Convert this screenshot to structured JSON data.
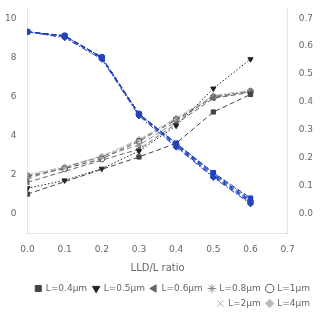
{
  "chart_data": {
    "type": "line",
    "xlabel": "LLD/L ratio",
    "xlim": [
      0.0,
      0.7
    ],
    "xticks": [
      {
        "value": 0.0,
        "label": "0.0"
      },
      0.1,
      0.2,
      0.3,
      0.4,
      0.5,
      0.6,
      0.7
    ],
    "ylim": [
      -1.0,
      10.5
    ],
    "yticks": [
      0,
      2,
      4,
      6,
      8,
      10
    ],
    "y2lim": [
      -0.07,
      0.735
    ],
    "y2ticks": [
      {
        "value": 0.0,
        "label": "0.0"
      },
      0.1,
      0.2,
      0.3,
      0.4,
      0.5,
      0.6,
      0.7
    ],
    "grid": false,
    "legend": "lower right",
    "series": [
      {
        "color": "#2244bb",
        "marker": "square",
        "line_style": "dashed",
        "x": [
          0.0,
          0.1,
          0.2,
          0.3,
          0.4,
          0.5,
          0.6
        ],
        "values": [
          9.3,
          9.1,
          8.0,
          5.1,
          3.6,
          2.1,
          0.8
        ]
      },
      {
        "color": "#2244bb",
        "marker": "triangle_down",
        "line_style": "dotted",
        "x": [
          0.0,
          0.1,
          0.2,
          0.3,
          0.4,
          0.5,
          0.6
        ],
        "values": [
          9.3,
          9.1,
          8.0,
          5.1,
          3.6,
          2.1,
          0.75
        ]
      },
      {
        "color": "#2244bb",
        "marker": "triangle_left",
        "line_style": "dashed",
        "x": [
          0.0,
          0.1,
          0.2,
          0.3,
          0.4,
          0.5,
          0.6
        ],
        "values": [
          9.3,
          9.1,
          8.0,
          5.1,
          3.6,
          2.05,
          0.7
        ]
      },
      {
        "color": "#2244bb",
        "marker": "star",
        "line_style": "dashed",
        "x": [
          0.0,
          0.1,
          0.2,
          0.3,
          0.4,
          0.5,
          0.6
        ],
        "values": [
          9.3,
          9.1,
          8.0,
          5.1,
          3.55,
          2.0,
          0.65
        ]
      },
      {
        "color": "#2244bb",
        "marker": "open_circle",
        "line_style": "dashed",
        "x": [
          0.0,
          0.1,
          0.2,
          0.3,
          0.4,
          0.5,
          0.6
        ],
        "values": [
          9.3,
          9.1,
          8.0,
          5.1,
          3.5,
          1.95,
          0.6
        ]
      },
      {
        "color": "#2244bb",
        "marker": "x",
        "line_style": "dashed",
        "x": [
          0.0,
          0.1,
          0.2,
          0.3,
          0.4,
          0.5,
          0.6
        ],
        "values": [
          9.3,
          9.05,
          7.95,
          5.05,
          3.45,
          1.9,
          0.55
        ]
      },
      {
        "color": "#2244bb",
        "marker": "diamond",
        "line_style": "dashdot",
        "x": [
          0.0,
          0.1,
          0.2,
          0.3,
          0.4,
          0.5,
          0.6
        ],
        "values": [
          9.3,
          9.0,
          7.9,
          5.0,
          3.4,
          1.85,
          0.5
        ]
      },
      {
        "name": "L=0.4μm",
        "color": "#444444",
        "marker": "square",
        "line_style": "dashed",
        "x": [
          0.0,
          0.3,
          0.4,
          0.5,
          0.6
        ],
        "values": [
          1.0,
          2.9,
          3.6,
          5.2,
          6.1
        ]
      },
      {
        "name": "L=0.5μm",
        "color": "#222222",
        "marker": "triangle_down",
        "line_style": "dotted",
        "x": [
          0.0,
          0.1,
          0.2,
          0.3,
          0.4,
          0.5,
          0.6
        ],
        "values": [
          1.3,
          1.7,
          2.3,
          3.2,
          4.5,
          6.4,
          7.9
        ]
      },
      {
        "name": "L=0.6μm",
        "color": "#666666",
        "marker": "triangle_left",
        "line_style": "dashed",
        "x": [
          0.0,
          0.3,
          0.4,
          0.5,
          0.6
        ],
        "values": [
          1.6,
          3.3,
          4.6,
          5.9,
          6.2
        ]
      },
      {
        "name": "L=0.8μm",
        "color": "#888888",
        "marker": "star",
        "line_style": "dashed",
        "x": [
          0.0,
          0.3,
          0.4,
          0.5,
          0.6
        ],
        "values": [
          1.8,
          3.5,
          4.7,
          6.0,
          6.25
        ]
      },
      {
        "name": "L=1μm",
        "color": "#555555",
        "marker": "open_circle",
        "line_style": "dashed",
        "x": [
          0.0,
          0.1,
          0.2,
          0.3,
          0.4,
          0.5,
          0.6
        ],
        "values": [
          1.9,
          2.3,
          2.8,
          3.7,
          4.8,
          5.95,
          6.25
        ]
      },
      {
        "name": "L=2μm",
        "color": "#aaaaaa",
        "marker": "x",
        "line_style": "dashed",
        "x": [
          0.0,
          0.1,
          0.2,
          0.3,
          0.4,
          0.5,
          0.6
        ],
        "values": [
          1.95,
          2.35,
          2.9,
          3.75,
          4.85,
          6.0,
          6.25
        ]
      },
      {
        "name": "L=4μm",
        "color": "#bbbbbb",
        "marker": "diamond",
        "line_style": "dashdot",
        "x": [
          0.0,
          0.1,
          0.2,
          0.3,
          0.4,
          0.5,
          0.6
        ],
        "values": [
          2.0,
          2.4,
          2.95,
          3.8,
          4.9,
          6.05,
          6.3
        ]
      }
    ]
  }
}
